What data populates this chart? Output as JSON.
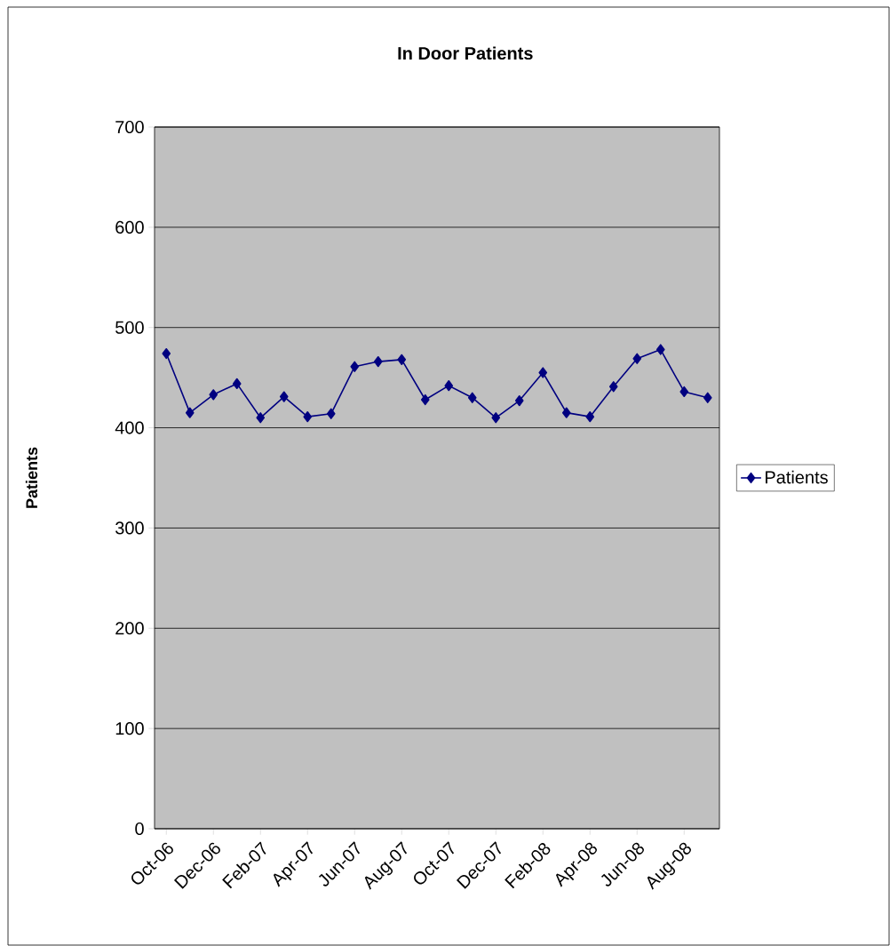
{
  "chart_data": {
    "type": "line",
    "title": "In Door Patients",
    "ylabel": "Patients",
    "categories": [
      "Oct-06",
      null,
      "Dec-06",
      null,
      "Feb-07",
      null,
      "Apr-07",
      null,
      "Jun-07",
      null,
      "Aug-07",
      null,
      "Oct-07",
      null,
      "Dec-07",
      null,
      "Feb-08",
      null,
      "Apr-08",
      null,
      "Jun-08",
      null,
      "Aug-08",
      null
    ],
    "series": [
      {
        "name": "Patients",
        "color": "#000080",
        "values": [
          474,
          415,
          433,
          444,
          410,
          431,
          411,
          414,
          461,
          466,
          468,
          428,
          442,
          430,
          410,
          427,
          455,
          415,
          411,
          441,
          469,
          478,
          436,
          430
        ]
      }
    ],
    "ylim": [
      0,
      700
    ],
    "yticks": [
      0,
      100,
      200,
      300,
      400,
      500,
      600,
      700
    ],
    "grid": "y",
    "legend": "right",
    "marker": "diamond",
    "line_style": "solid"
  }
}
